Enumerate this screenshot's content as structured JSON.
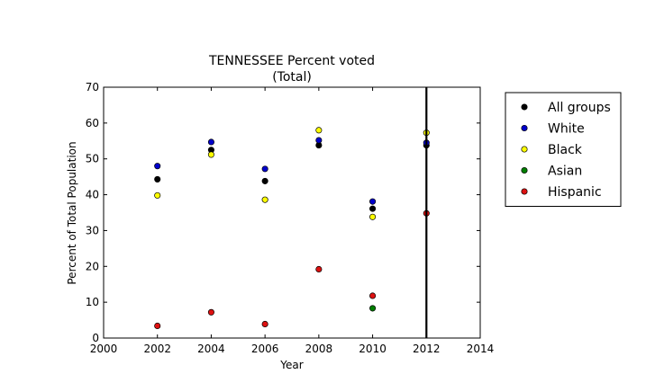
{
  "chart_data": {
    "type": "scatter",
    "title": "TENNESSEE Percent voted",
    "subtitle": "(Total)",
    "xlabel": "Year",
    "ylabel": "Percent of Total Population",
    "xlim": [
      2000,
      2014
    ],
    "ylim": [
      0,
      70
    ],
    "xticks": [
      2000,
      2002,
      2004,
      2006,
      2008,
      2010,
      2012,
      2014
    ],
    "yticks": [
      0,
      10,
      20,
      30,
      40,
      50,
      60,
      70
    ],
    "grid": false,
    "legend_position": "outside-right",
    "vertical_line": {
      "x": 2012,
      "color": "#000000"
    },
    "series": [
      {
        "name": "All groups",
        "color": "#000000",
        "points": [
          [
            2002,
            44.3
          ],
          [
            2004,
            52.5
          ],
          [
            2006,
            43.8
          ],
          [
            2008,
            53.8
          ],
          [
            2010,
            36.1
          ],
          [
            2012,
            53.8
          ]
        ]
      },
      {
        "name": "White",
        "color": "#0000cc",
        "points": [
          [
            2002,
            48.0
          ],
          [
            2004,
            54.7
          ],
          [
            2006,
            47.2
          ],
          [
            2008,
            55.2
          ],
          [
            2010,
            38.1
          ],
          [
            2012,
            54.5
          ]
        ]
      },
      {
        "name": "Black",
        "color": "#ffff00",
        "points": [
          [
            2002,
            39.8
          ],
          [
            2004,
            51.2
          ],
          [
            2006,
            38.6
          ],
          [
            2008,
            58.0
          ],
          [
            2010,
            33.8
          ],
          [
            2012,
            57.3
          ]
        ]
      },
      {
        "name": "Asian",
        "color": "#007f00",
        "points": [
          [
            2010,
            8.3
          ]
        ]
      },
      {
        "name": "Hispanic",
        "color": "#dd1111",
        "points": [
          [
            2002,
            3.4
          ],
          [
            2004,
            7.2
          ],
          [
            2006,
            3.9
          ],
          [
            2008,
            19.2
          ],
          [
            2010,
            11.8
          ],
          [
            2012,
            34.8
          ]
        ]
      }
    ]
  }
}
